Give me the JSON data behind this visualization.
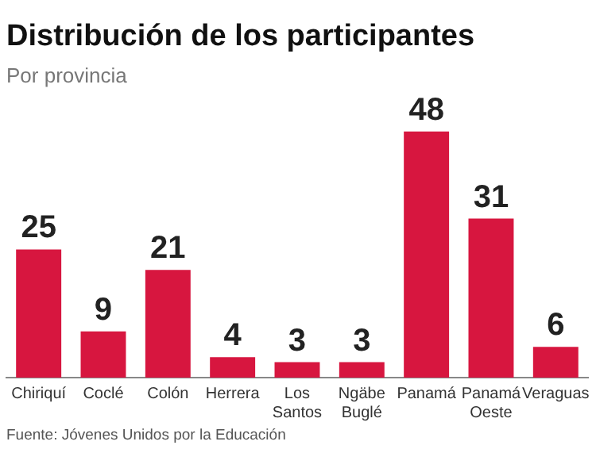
{
  "chart_data": {
    "type": "bar",
    "title": "Distribución de los participantes",
    "subtitle": "Por provincia",
    "categories": [
      "Chiriquí",
      "Coclé",
      "Colón",
      "Herrera",
      "Los Santos",
      "Ngäbe Buglé",
      "Panamá",
      "Panamá Oeste",
      "Veraguas"
    ],
    "values": [
      25,
      9,
      21,
      4,
      3,
      3,
      48,
      31,
      6
    ],
    "color": "#d7163f",
    "data_labels": true,
    "grid": false,
    "legend": false,
    "annotations": [
      "Fuente: Jóvenes Unidos por la Educación"
    ]
  }
}
